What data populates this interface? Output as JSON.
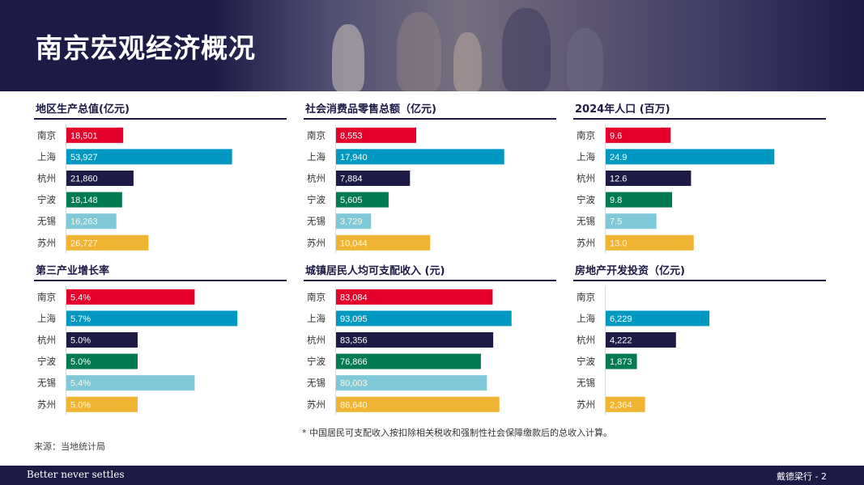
{
  "page": {
    "title": "南京宏观经济概况",
    "footnote": "* 中国居民可支配收入按扣除相关税收和强制性社会保障缴款后的总收入计算。",
    "source": "来源：当地统计局",
    "footer_tagline": "Better never settles",
    "footer_page": "戴德梁行 - 2"
  },
  "colors": {
    "南京": "#e4002b",
    "上海": "#0098c0",
    "杭州": "#1d1a45",
    "宁波": "#007a53",
    "无锡": "#7ec8d8",
    "苏州": "#f0b433",
    "header": "#1d1a45",
    "footer": "#1d1a45"
  },
  "chart_data": [
    {
      "type": "bar",
      "title": "地区生产总值(亿元)",
      "categories": [
        "南京",
        "上海",
        "杭州",
        "宁波",
        "无锡",
        "苏州"
      ],
      "values": [
        18501,
        53927,
        21860,
        18148,
        16263,
        26727
      ],
      "labels": [
        "18,501",
        "53,927",
        "21,860",
        "18,148",
        "16,263",
        "26,727"
      ],
      "xlim": [
        0,
        58000
      ]
    },
    {
      "type": "bar",
      "title": "社会消费品零售总额（亿元)",
      "categories": [
        "南京",
        "上海",
        "杭州",
        "宁波",
        "无锡",
        "苏州"
      ],
      "values": [
        8553,
        17940,
        7884,
        5605,
        3729,
        10044
      ],
      "labels": [
        "8,553",
        "17,940",
        "7,884",
        "5,605",
        "3,729",
        "10,044"
      ],
      "xlim": [
        0,
        19000
      ]
    },
    {
      "type": "bar",
      "title": "2024年人口 (百万)",
      "categories": [
        "南京",
        "上海",
        "杭州",
        "宁波",
        "无锡",
        "苏州"
      ],
      "values": [
        9.6,
        24.9,
        12.6,
        9.8,
        7.5,
        13.0
      ],
      "labels": [
        "9.6",
        "24.9",
        "12.6",
        "9.8",
        "7.5",
        "13.0"
      ],
      "xlim": [
        0,
        26.3
      ]
    },
    {
      "type": "bar",
      "title": "第三产业增长率",
      "categories": [
        "南京",
        "上海",
        "杭州",
        "宁波",
        "无锡",
        "苏州"
      ],
      "values": [
        5.4,
        5.7,
        5.0,
        5.0,
        5.4,
        5.0
      ],
      "labels": [
        "5.4%",
        "5.7%",
        "5.0%",
        "5.0%",
        "5.4%",
        "5.0%"
      ],
      "xlim": [
        4.5,
        5.75
      ]
    },
    {
      "type": "bar",
      "title": "城镇居民人均可支配收入 (元)",
      "categories": [
        "南京",
        "上海",
        "杭州",
        "宁波",
        "无锡",
        "苏州"
      ],
      "values": [
        83084,
        93095,
        83356,
        76866,
        80003,
        86640
      ],
      "labels": [
        "83,084",
        "93,095",
        "83,356",
        "76,866",
        "80,003",
        "86,640"
      ],
      "xlim": [
        0,
        94500
      ]
    },
    {
      "type": "bar",
      "title": "房地产开发投资（亿元)",
      "categories": [
        "南京",
        "上海",
        "杭州",
        "宁波",
        "无锡",
        "苏州"
      ],
      "values": [
        null,
        6229,
        4222,
        1873,
        null,
        2364
      ],
      "labels": [
        "",
        "6,229",
        "4,222",
        "1,873",
        "",
        "2,364"
      ],
      "xlim": [
        0,
        10700
      ]
    }
  ]
}
